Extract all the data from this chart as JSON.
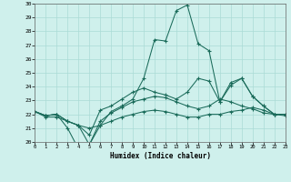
{
  "xlabel": "Humidex (Indice chaleur)",
  "xlim": [
    0,
    23
  ],
  "ylim": [
    20,
    30
  ],
  "xticks": [
    0,
    1,
    2,
    3,
    4,
    5,
    6,
    7,
    8,
    9,
    10,
    11,
    12,
    13,
    14,
    15,
    16,
    17,
    18,
    19,
    20,
    21,
    22,
    23
  ],
  "yticks": [
    20,
    21,
    22,
    23,
    24,
    25,
    26,
    27,
    28,
    29,
    30
  ],
  "bg_color": "#cff0ec",
  "line_color": "#1a6b5a",
  "grid_color": "#aadbd6",
  "lines": [
    [
      22.2,
      21.9,
      22.0,
      21.5,
      21.2,
      19.8,
      21.5,
      22.1,
      22.5,
      22.9,
      23.1,
      23.3,
      23.2,
      22.9,
      22.6,
      22.4,
      22.6,
      23.1,
      22.9,
      22.6,
      22.4,
      22.1,
      22.0,
      22.0
    ],
    [
      22.2,
      21.9,
      22.0,
      21.0,
      19.5,
      19.8,
      21.2,
      22.2,
      22.6,
      23.1,
      24.6,
      27.4,
      27.3,
      29.5,
      29.9,
      27.1,
      26.6,
      22.9,
      24.1,
      24.6,
      23.3,
      22.6,
      22.0,
      22.0
    ],
    [
      22.2,
      21.8,
      21.8,
      21.5,
      21.2,
      21.0,
      21.2,
      21.5,
      21.8,
      22.0,
      22.2,
      22.3,
      22.2,
      22.0,
      21.8,
      21.8,
      22.0,
      22.0,
      22.2,
      22.3,
      22.5,
      22.3,
      22.0,
      21.9
    ],
    [
      22.2,
      21.9,
      22.0,
      21.5,
      21.2,
      20.5,
      22.3,
      22.6,
      23.1,
      23.6,
      23.9,
      23.6,
      23.4,
      23.1,
      23.6,
      24.6,
      24.4,
      22.9,
      24.3,
      24.6,
      23.3,
      22.6,
      22.0,
      22.0
    ]
  ],
  "figsize": [
    3.2,
    2.0
  ],
  "dpi": 100
}
